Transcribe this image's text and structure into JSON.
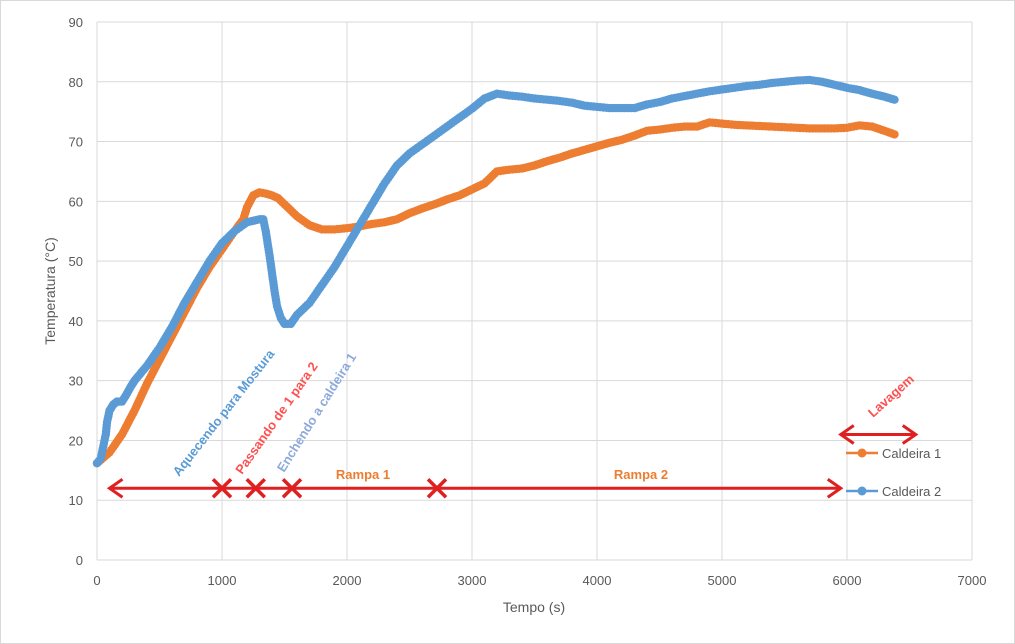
{
  "chart_data": {
    "type": "scatter",
    "xlabel": "Tempo (s)",
    "ylabel": "Temperatura (°C)",
    "xlim": [
      0,
      7000
    ],
    "ylim": [
      0,
      90
    ],
    "xticks": [
      0,
      1000,
      2000,
      3000,
      4000,
      5000,
      6000,
      7000
    ],
    "yticks": [
      0,
      10,
      20,
      30,
      40,
      50,
      60,
      70,
      80,
      90
    ],
    "grid": true,
    "legend_position": "right",
    "series": [
      {
        "name": "Caldeira 1",
        "color": "#ed7d31",
        "points": [
          [
            0,
            16.2
          ],
          [
            100,
            18
          ],
          [
            200,
            21
          ],
          [
            300,
            25
          ],
          [
            400,
            29.5
          ],
          [
            500,
            33.5
          ],
          [
            600,
            37.5
          ],
          [
            700,
            41.5
          ],
          [
            800,
            45.5
          ],
          [
            900,
            49
          ],
          [
            1000,
            52
          ],
          [
            1100,
            55
          ],
          [
            1170,
            57
          ],
          [
            1200,
            59
          ],
          [
            1250,
            61
          ],
          [
            1300,
            61.5
          ],
          [
            1350,
            61.3
          ],
          [
            1400,
            61
          ],
          [
            1450,
            60.5
          ],
          [
            1500,
            59.5
          ],
          [
            1600,
            57.5
          ],
          [
            1700,
            56
          ],
          [
            1800,
            55.3
          ],
          [
            1900,
            55.3
          ],
          [
            2000,
            55.5
          ],
          [
            2100,
            55.8
          ],
          [
            2200,
            56.2
          ],
          [
            2300,
            56.5
          ],
          [
            2400,
            57
          ],
          [
            2500,
            58
          ],
          [
            2600,
            58.8
          ],
          [
            2700,
            59.5
          ],
          [
            2800,
            60.3
          ],
          [
            2900,
            61
          ],
          [
            3000,
            62
          ],
          [
            3100,
            63
          ],
          [
            3200,
            65
          ],
          [
            3300,
            65.3
          ],
          [
            3400,
            65.5
          ],
          [
            3500,
            66
          ],
          [
            3600,
            66.7
          ],
          [
            3700,
            67.3
          ],
          [
            3800,
            68
          ],
          [
            3900,
            68.6
          ],
          [
            4000,
            69.2
          ],
          [
            4100,
            69.8
          ],
          [
            4200,
            70.3
          ],
          [
            4300,
            71
          ],
          [
            4400,
            71.8
          ],
          [
            4500,
            72
          ],
          [
            4600,
            72.3
          ],
          [
            4700,
            72.5
          ],
          [
            4800,
            72.5
          ],
          [
            4900,
            73.2
          ],
          [
            5000,
            73
          ],
          [
            5100,
            72.8
          ],
          [
            5200,
            72.7
          ],
          [
            5300,
            72.6
          ],
          [
            5400,
            72.5
          ],
          [
            5500,
            72.4
          ],
          [
            5600,
            72.3
          ],
          [
            5700,
            72.2
          ],
          [
            5800,
            72.2
          ],
          [
            5900,
            72.2
          ],
          [
            6000,
            72.3
          ],
          [
            6100,
            72.7
          ],
          [
            6200,
            72.5
          ],
          [
            6300,
            71.8
          ],
          [
            6380,
            71.2
          ]
        ]
      },
      {
        "name": "Caldeira 2",
        "color": "#5b9bd5",
        "points": [
          [
            0,
            16.2
          ],
          [
            30,
            17
          ],
          [
            50,
            19
          ],
          [
            70,
            21
          ],
          [
            80,
            23
          ],
          [
            100,
            25
          ],
          [
            130,
            26
          ],
          [
            160,
            26.5
          ],
          [
            200,
            26.5
          ],
          [
            230,
            27.5
          ],
          [
            270,
            29
          ],
          [
            300,
            30
          ],
          [
            400,
            32.5
          ],
          [
            500,
            35.5
          ],
          [
            600,
            39
          ],
          [
            700,
            43
          ],
          [
            800,
            46.5
          ],
          [
            900,
            50
          ],
          [
            1000,
            53
          ],
          [
            1100,
            55
          ],
          [
            1200,
            56.5
          ],
          [
            1300,
            57
          ],
          [
            1330,
            57
          ],
          [
            1350,
            55
          ],
          [
            1380,
            51
          ],
          [
            1400,
            48
          ],
          [
            1420,
            45
          ],
          [
            1440,
            42.5
          ],
          [
            1470,
            40.5
          ],
          [
            1500,
            39.5
          ],
          [
            1550,
            39.5
          ],
          [
            1600,
            41
          ],
          [
            1700,
            43
          ],
          [
            1800,
            46
          ],
          [
            1900,
            49
          ],
          [
            2000,
            52.5
          ],
          [
            2100,
            56
          ],
          [
            2200,
            59.5
          ],
          [
            2300,
            63
          ],
          [
            2400,
            66
          ],
          [
            2500,
            68
          ],
          [
            2600,
            69.5
          ],
          [
            2700,
            71
          ],
          [
            2800,
            72.5
          ],
          [
            2900,
            74
          ],
          [
            3000,
            75.5
          ],
          [
            3100,
            77.2
          ],
          [
            3200,
            78
          ],
          [
            3300,
            77.7
          ],
          [
            3400,
            77.5
          ],
          [
            3500,
            77.2
          ],
          [
            3600,
            77
          ],
          [
            3700,
            76.8
          ],
          [
            3800,
            76.5
          ],
          [
            3900,
            76
          ],
          [
            4000,
            75.8
          ],
          [
            4100,
            75.6
          ],
          [
            4200,
            75.6
          ],
          [
            4300,
            75.6
          ],
          [
            4400,
            76.2
          ],
          [
            4500,
            76.6
          ],
          [
            4600,
            77.2
          ],
          [
            4700,
            77.6
          ],
          [
            4800,
            78
          ],
          [
            4900,
            78.4
          ],
          [
            5000,
            78.7
          ],
          [
            5100,
            79
          ],
          [
            5200,
            79.3
          ],
          [
            5300,
            79.5
          ],
          [
            5400,
            79.8
          ],
          [
            5500,
            80
          ],
          [
            5600,
            80.2
          ],
          [
            5700,
            80.3
          ],
          [
            5800,
            80
          ],
          [
            5900,
            79.5
          ],
          [
            6000,
            79
          ],
          [
            6100,
            78.6
          ],
          [
            6200,
            78
          ],
          [
            6300,
            77.5
          ],
          [
            6380,
            77
          ]
        ]
      }
    ],
    "annotations": [
      {
        "text": "Aquecendo para Mostura",
        "color": "#5b9bd5"
      },
      {
        "text": "Passando de 1 para 2",
        "color": "#ff5050"
      },
      {
        "text": "Enchendo a caldeira 1",
        "color": "#8eaadb"
      },
      {
        "text": "Rampa 1",
        "color": "#ed7d31"
      },
      {
        "text": "Rampa 2",
        "color": "#ed7d31"
      },
      {
        "text": "Lavagem",
        "color": "#ff5050"
      }
    ],
    "markers": {
      "arrow_color": "#e02020",
      "timeline_y": 12,
      "timeline_start": 100,
      "timeline_end": 5950,
      "x_marks": [
        1000,
        1270,
        1560,
        2720
      ],
      "lavagem_start": 5950,
      "lavagem_end": 6550,
      "lavagem_y": 21
    }
  }
}
